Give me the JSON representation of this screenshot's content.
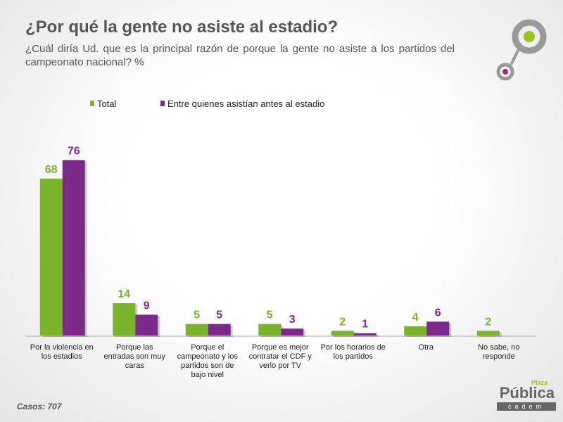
{
  "chart_data": {
    "type": "bar",
    "title": "¿Por qué la gente no asiste al estadio?",
    "subtitle": "¿Cuál diría Ud. que es la principal razón de porque la gente no asiste a los partidos del campeonato nacional? %",
    "categories": [
      "Por la violencia en los estadios",
      "Porque las entradas son muy caras",
      "Porque el campeonato y los partidos son de bajo nivel",
      "Porque es mejor contratar el CDF y verlo por TV",
      "Por los horarios de los partidos",
      "Otra",
      "No sabe, no responde"
    ],
    "series": [
      {
        "name": "Total",
        "color": "#7ab42c",
        "values": [
          68,
          14,
          5,
          5,
          2,
          4,
          2
        ]
      },
      {
        "name": "Entre quienes asistían antes al estadio",
        "color": "#7b2a8a",
        "values": [
          76,
          9,
          5,
          3,
          1,
          6,
          null
        ]
      }
    ],
    "footer": "Casos: 707",
    "logo": {
      "small": "Plaza",
      "main": "Pública",
      "sub": "cadem"
    }
  }
}
